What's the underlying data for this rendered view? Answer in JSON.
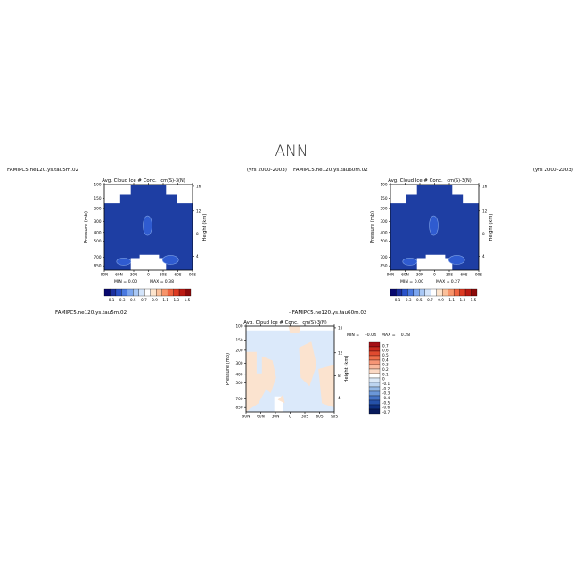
{
  "title": "ANN",
  "colors": {
    "deep_blue": "#1e3ea3",
    "mid_blue": "#2f5bd0",
    "light_blue": "#dbe9fa",
    "light_orange": "#fbe3cf",
    "white": "#ffffff"
  },
  "chart_data": [
    {
      "type": "heatmap",
      "case_name": "FAMIPC5.ne120.ys.tau5m.02",
      "years": "(yrs 2000-2003)",
      "title": "Avg. Cloud Ice # Conc.",
      "units": "cm(S)-3(N)",
      "ylabel": "Pressure (mb)",
      "ylabel_right": "Height (km)",
      "x_ticks": [
        "90N",
        "60N",
        "30N",
        "0",
        "30S",
        "60S",
        "90S"
      ],
      "y_ticks": [
        "100",
        "150",
        "200",
        "300",
        "400",
        "500",
        "700",
        "850"
      ],
      "y_right_ticks": [
        "16",
        "12",
        "8",
        "4"
      ],
      "min_label": "MIN =",
      "min_value": "0.00",
      "max_label": "MAX =",
      "max_value": "0.38",
      "colorbar_labels": [
        "0.1",
        "0.3",
        "0.5",
        "0.7",
        "0.9",
        "1.1",
        "1.3",
        "1.5"
      ],
      "colorbar_colors": [
        "#08086e",
        "#1b2f9e",
        "#2a52c9",
        "#4a79e0",
        "#7ca6ef",
        "#a9c8f5",
        "#d3e4fa",
        "#ffffff",
        "#fde4cc",
        "#fbc09a",
        "#f7946a",
        "#ef6440",
        "#dd3a22",
        "#bb1a12",
        "#8c0a0a"
      ]
    },
    {
      "type": "heatmap",
      "case_name": "FAMIPC5.ne120.ys.tau60m.02",
      "years": "(yrs 2000-2003)",
      "title": "Avg. Cloud Ice # Conc.",
      "units": "cm(S)-3(N)",
      "ylabel": "Pressure (mb)",
      "ylabel_right": "Height (km)",
      "x_ticks": [
        "90N",
        "60N",
        "30N",
        "0",
        "30S",
        "60S",
        "90S"
      ],
      "y_ticks": [
        "100",
        "150",
        "200",
        "300",
        "400",
        "500",
        "700",
        "850"
      ],
      "y_right_ticks": [
        "16",
        "12",
        "8",
        "4"
      ],
      "min_label": "MIN =",
      "min_value": "0.00",
      "max_label": "MAX =",
      "max_value": "0.27",
      "colorbar_labels": [
        "0.1",
        "0.3",
        "0.5",
        "0.7",
        "0.9",
        "1.1",
        "1.3",
        "1.5"
      ],
      "colorbar_colors": [
        "#08086e",
        "#1b2f9e",
        "#2a52c9",
        "#4a79e0",
        "#7ca6ef",
        "#a9c8f5",
        "#d3e4fa",
        "#ffffff",
        "#fde4cc",
        "#fbc09a",
        "#f7946a",
        "#ef6440",
        "#dd3a22",
        "#bb1a12",
        "#8c0a0a"
      ]
    },
    {
      "type": "heatmap",
      "case_name": "FAMIPC5.ne120.ys.tau5m.02",
      "diff_label": "- FAMIPC5.ne120.ys.tau60m.02",
      "title": "Avg. Cloud Ice # Conc.",
      "units": "cm(S)-3(N)",
      "ylabel": "Pressure (mb)",
      "ylabel_right": "Height (km)",
      "x_ticks": [
        "90N",
        "60N",
        "30N",
        "0",
        "30S",
        "60S",
        "90S"
      ],
      "y_ticks": [
        "100",
        "150",
        "200",
        "300",
        "400",
        "500",
        "700",
        "850"
      ],
      "y_right_ticks": [
        "16",
        "12",
        "8",
        "4"
      ],
      "min_label": "MIN =",
      "min_value": "-0.04",
      "max_label": "MAX =",
      "max_value": "0.28",
      "colorbar_labels": [
        "0.7",
        "0.6",
        "0.5",
        "0.4",
        "0.3",
        "0.2",
        "0.1",
        "0",
        "-0.1",
        "-0.2",
        "-0.3",
        "-0.4",
        "-0.5",
        "-0.6",
        "-0.7"
      ],
      "colorbar_colors": [
        "#a50f15",
        "#c9281d",
        "#e04a2f",
        "#ef6e4a",
        "#f69575",
        "#f9b89c",
        "#fcd9c4",
        "#ffffff",
        "#dce9f7",
        "#bcd4f0",
        "#93b8e6",
        "#6b97d8",
        "#4573c6",
        "#2551a8",
        "#0d2f80",
        "#081b5c"
      ]
    }
  ]
}
